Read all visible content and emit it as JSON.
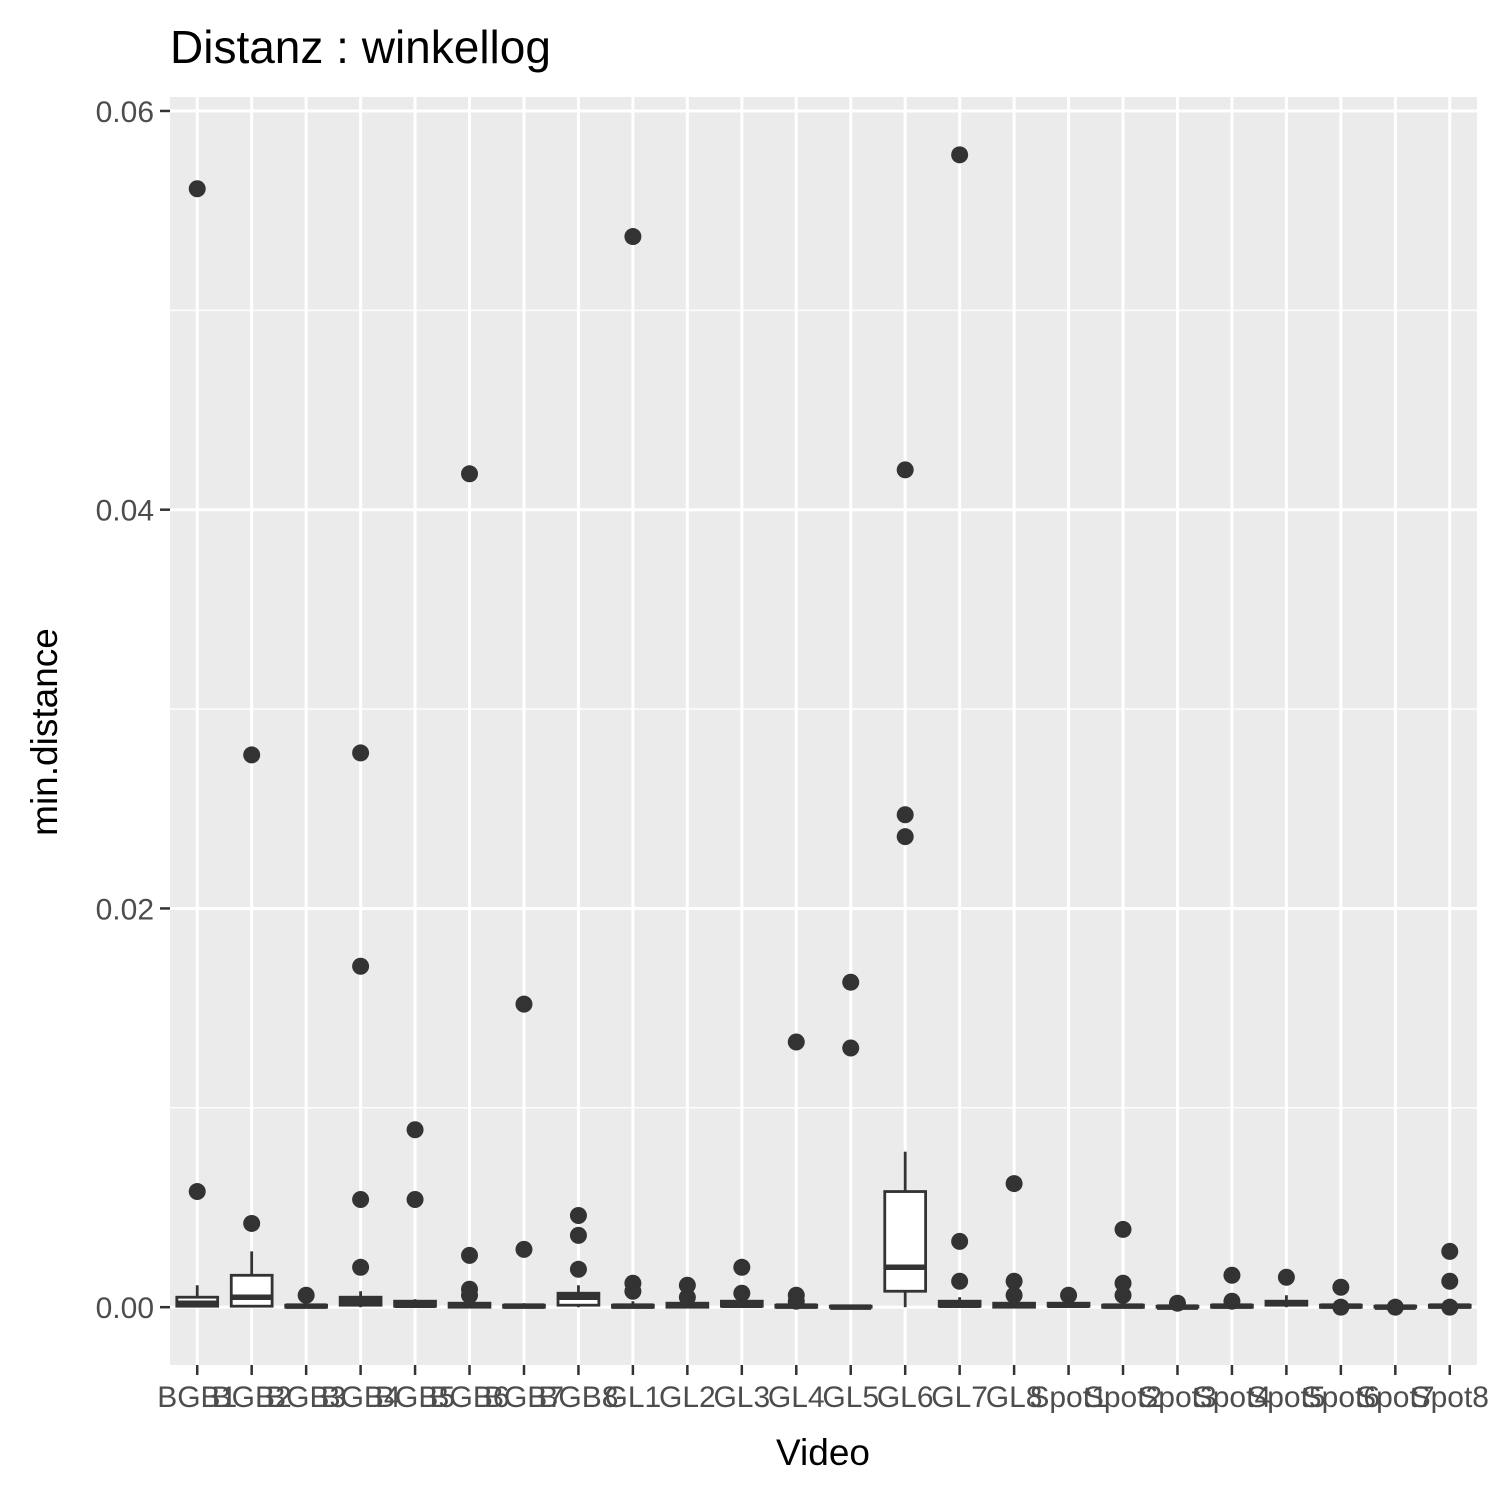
{
  "chart_data": {
    "type": "boxplot",
    "title": "Distanz : winkellog",
    "xlabel": "Video",
    "ylabel": "min.distance",
    "ylim": [
      -0.0029,
      0.0607
    ],
    "yticks": [
      0.0,
      0.02,
      0.04,
      0.06
    ],
    "ytick_labels": [
      "0.00",
      "0.02",
      "0.04",
      "0.06"
    ],
    "grid": true,
    "categories": [
      "BGB1",
      "BGB2",
      "BGB3",
      "BGB4",
      "BGB5",
      "BGB6",
      "BGB7",
      "BGB8",
      "GL1",
      "GL2",
      "GL3",
      "GL4",
      "GL5",
      "GL6",
      "GL7",
      "GL8",
      "Spot1",
      "Spot2",
      "Spot3",
      "Spot4",
      "Spot5",
      "Spot6",
      "Spot7",
      "Spot8"
    ],
    "boxes": [
      {
        "lower": 0.0,
        "q1": 5e-05,
        "median": 0.0002,
        "q3": 0.0005,
        "upper": 0.0011,
        "outliers": [
          0.0561,
          0.0058
        ]
      },
      {
        "lower": 0.0,
        "q1": 5e-05,
        "median": 0.0005,
        "q3": 0.0016,
        "upper": 0.0028,
        "outliers": [
          0.0277,
          0.0042
        ]
      },
      {
        "lower": 0.0,
        "q1": 0.0,
        "median": 5e-05,
        "q3": 0.0001,
        "upper": 0.0003,
        "outliers": [
          0.0006
        ]
      },
      {
        "lower": 0.0,
        "q1": 0.0001,
        "median": 0.0003,
        "q3": 0.0005,
        "upper": 0.0008,
        "outliers": [
          0.0278,
          0.0171,
          0.0054,
          0.002
        ]
      },
      {
        "lower": 0.0,
        "q1": 5e-05,
        "median": 0.0001,
        "q3": 0.0003,
        "upper": 0.0004,
        "outliers": [
          0.0089,
          0.0054
        ]
      },
      {
        "lower": 0.0,
        "q1": 0.0,
        "median": 0.0001,
        "q3": 0.0002,
        "upper": 0.0004,
        "outliers": [
          0.0418,
          0.0026,
          0.0009,
          0.0006
        ]
      },
      {
        "lower": 0.0,
        "q1": 0.0,
        "median": 5e-05,
        "q3": 0.0001,
        "upper": 0.0002,
        "outliers": [
          0.0152,
          0.0029
        ]
      },
      {
        "lower": 0.0,
        "q1": 0.0001,
        "median": 0.0005,
        "q3": 0.0007,
        "upper": 0.0011,
        "outliers": [
          0.0046,
          0.0036,
          0.0019
        ]
      },
      {
        "lower": 0.0,
        "q1": 0.0,
        "median": 5e-05,
        "q3": 0.0001,
        "upper": 0.0003,
        "outliers": [
          0.0537,
          0.0012,
          0.0008
        ]
      },
      {
        "lower": 0.0,
        "q1": 0.0,
        "median": 0.0001,
        "q3": 0.0002,
        "upper": 0.0004,
        "outliers": [
          0.0011,
          0.0005
        ]
      },
      {
        "lower": 0.0,
        "q1": 5e-05,
        "median": 0.0001,
        "q3": 0.0003,
        "upper": 0.0004,
        "outliers": [
          0.002,
          0.0007
        ]
      },
      {
        "lower": 0.0,
        "q1": 0.0,
        "median": 5e-05,
        "q3": 0.0001,
        "upper": 0.0002,
        "outliers": [
          0.0133,
          0.0006,
          0.0003
        ]
      },
      {
        "lower": 0.0,
        "q1": 0.0,
        "median": 0.0,
        "q3": 5e-05,
        "upper": 0.0001,
        "outliers": [
          0.0163,
          0.013
        ]
      },
      {
        "lower": 0.0,
        "q1": 0.0008,
        "median": 0.002,
        "q3": 0.0058,
        "upper": 0.0078,
        "outliers": [
          0.042,
          0.0247,
          0.0236
        ]
      },
      {
        "lower": 0.0,
        "q1": 5e-05,
        "median": 0.0001,
        "q3": 0.0003,
        "upper": 0.0005,
        "outliers": [
          0.0578,
          0.0033,
          0.0013
        ]
      },
      {
        "lower": 0.0,
        "q1": 0.0,
        "median": 0.0001,
        "q3": 0.0002,
        "upper": 0.0004,
        "outliers": [
          0.0062,
          0.0013,
          0.0006
        ]
      },
      {
        "lower": 0.0,
        "q1": 5e-05,
        "median": 0.0001,
        "q3": 0.0002,
        "upper": 0.0003,
        "outliers": [
          0.0006
        ]
      },
      {
        "lower": 0.0,
        "q1": 0.0,
        "median": 5e-05,
        "q3": 0.0001,
        "upper": 0.0002,
        "outliers": [
          0.0039,
          0.0012,
          0.0006
        ]
      },
      {
        "lower": 0.0,
        "q1": 0.0,
        "median": 0.0,
        "q3": 5e-05,
        "upper": 0.0001,
        "outliers": [
          0.0002
        ]
      },
      {
        "lower": 0.0,
        "q1": 0.0,
        "median": 5e-05,
        "q3": 0.0001,
        "upper": 0.0002,
        "outliers": [
          0.0016,
          0.0003
        ]
      },
      {
        "lower": 0.0,
        "q1": 0.0001,
        "median": 0.0002,
        "q3": 0.0003,
        "upper": 0.0006,
        "outliers": [
          0.0015
        ]
      },
      {
        "lower": 0.0,
        "q1": 0.0,
        "median": 5e-05,
        "q3": 0.0001,
        "upper": 0.0002,
        "outliers": [
          0.001,
          0.0
        ]
      },
      {
        "lower": 0.0,
        "q1": 0.0,
        "median": 0.0,
        "q3": 5e-05,
        "upper": 0.0001,
        "outliers": [
          0.0
        ]
      },
      {
        "lower": 0.0,
        "q1": 0.0,
        "median": 5e-05,
        "q3": 0.0001,
        "upper": 0.0002,
        "outliers": [
          0.0028,
          0.0013,
          0.0
        ]
      }
    ],
    "colors": {
      "panel_background": "#ebebeb",
      "grid_major": "#ffffff",
      "grid_minor": "#f5f5f5",
      "box_stroke": "#333333",
      "box_fill": "#ffffff",
      "outlier": "#333333",
      "tick_text": "#4d4d4d",
      "title_text": "#000000"
    }
  }
}
